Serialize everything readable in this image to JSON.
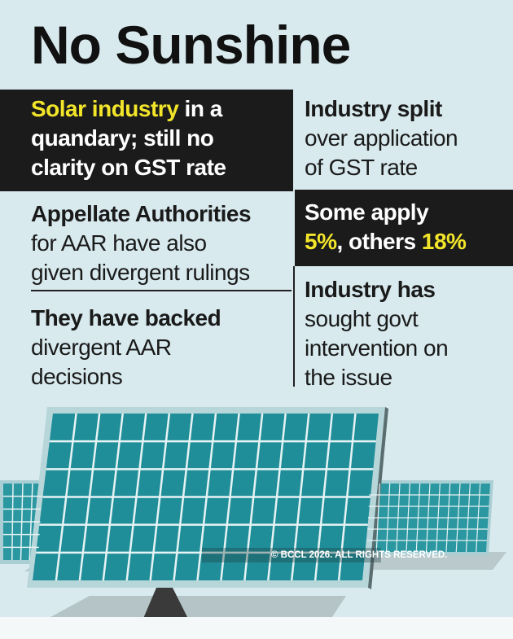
{
  "title": "No Sunshine",
  "left": {
    "box1": {
      "highlight": "Solar industry",
      "line1_rest": " in a",
      "line2": "quandary; still no",
      "line3": "clarity on GST rate"
    },
    "block2": {
      "bold": "Appellate Authorities",
      "line2": "for AAR have also",
      "line3": "given divergent rulings"
    },
    "block3": {
      "bold": "They have backed",
      "line2": "divergent AAR",
      "line3": "decisions"
    }
  },
  "right": {
    "block1": {
      "bold": "Industry split",
      "line2": "over application",
      "line3": "of GST rate"
    },
    "box2": {
      "line1": "Some apply",
      "rate1": "5%",
      "middle": ", others ",
      "rate2": "18%"
    },
    "block3": {
      "bold": "Industry has",
      "line2": "sought govt",
      "line3": "intervention on",
      "line4": "the issue"
    }
  },
  "watermark": "© BCCL 2026. ALL RIGHTS RESERVED.",
  "colors": {
    "background": "#d8eaee",
    "dark_box": "#1b1b1b",
    "highlight": "#f3e62a",
    "panel": "#1f8e99"
  },
  "illustration": "solar-panels"
}
